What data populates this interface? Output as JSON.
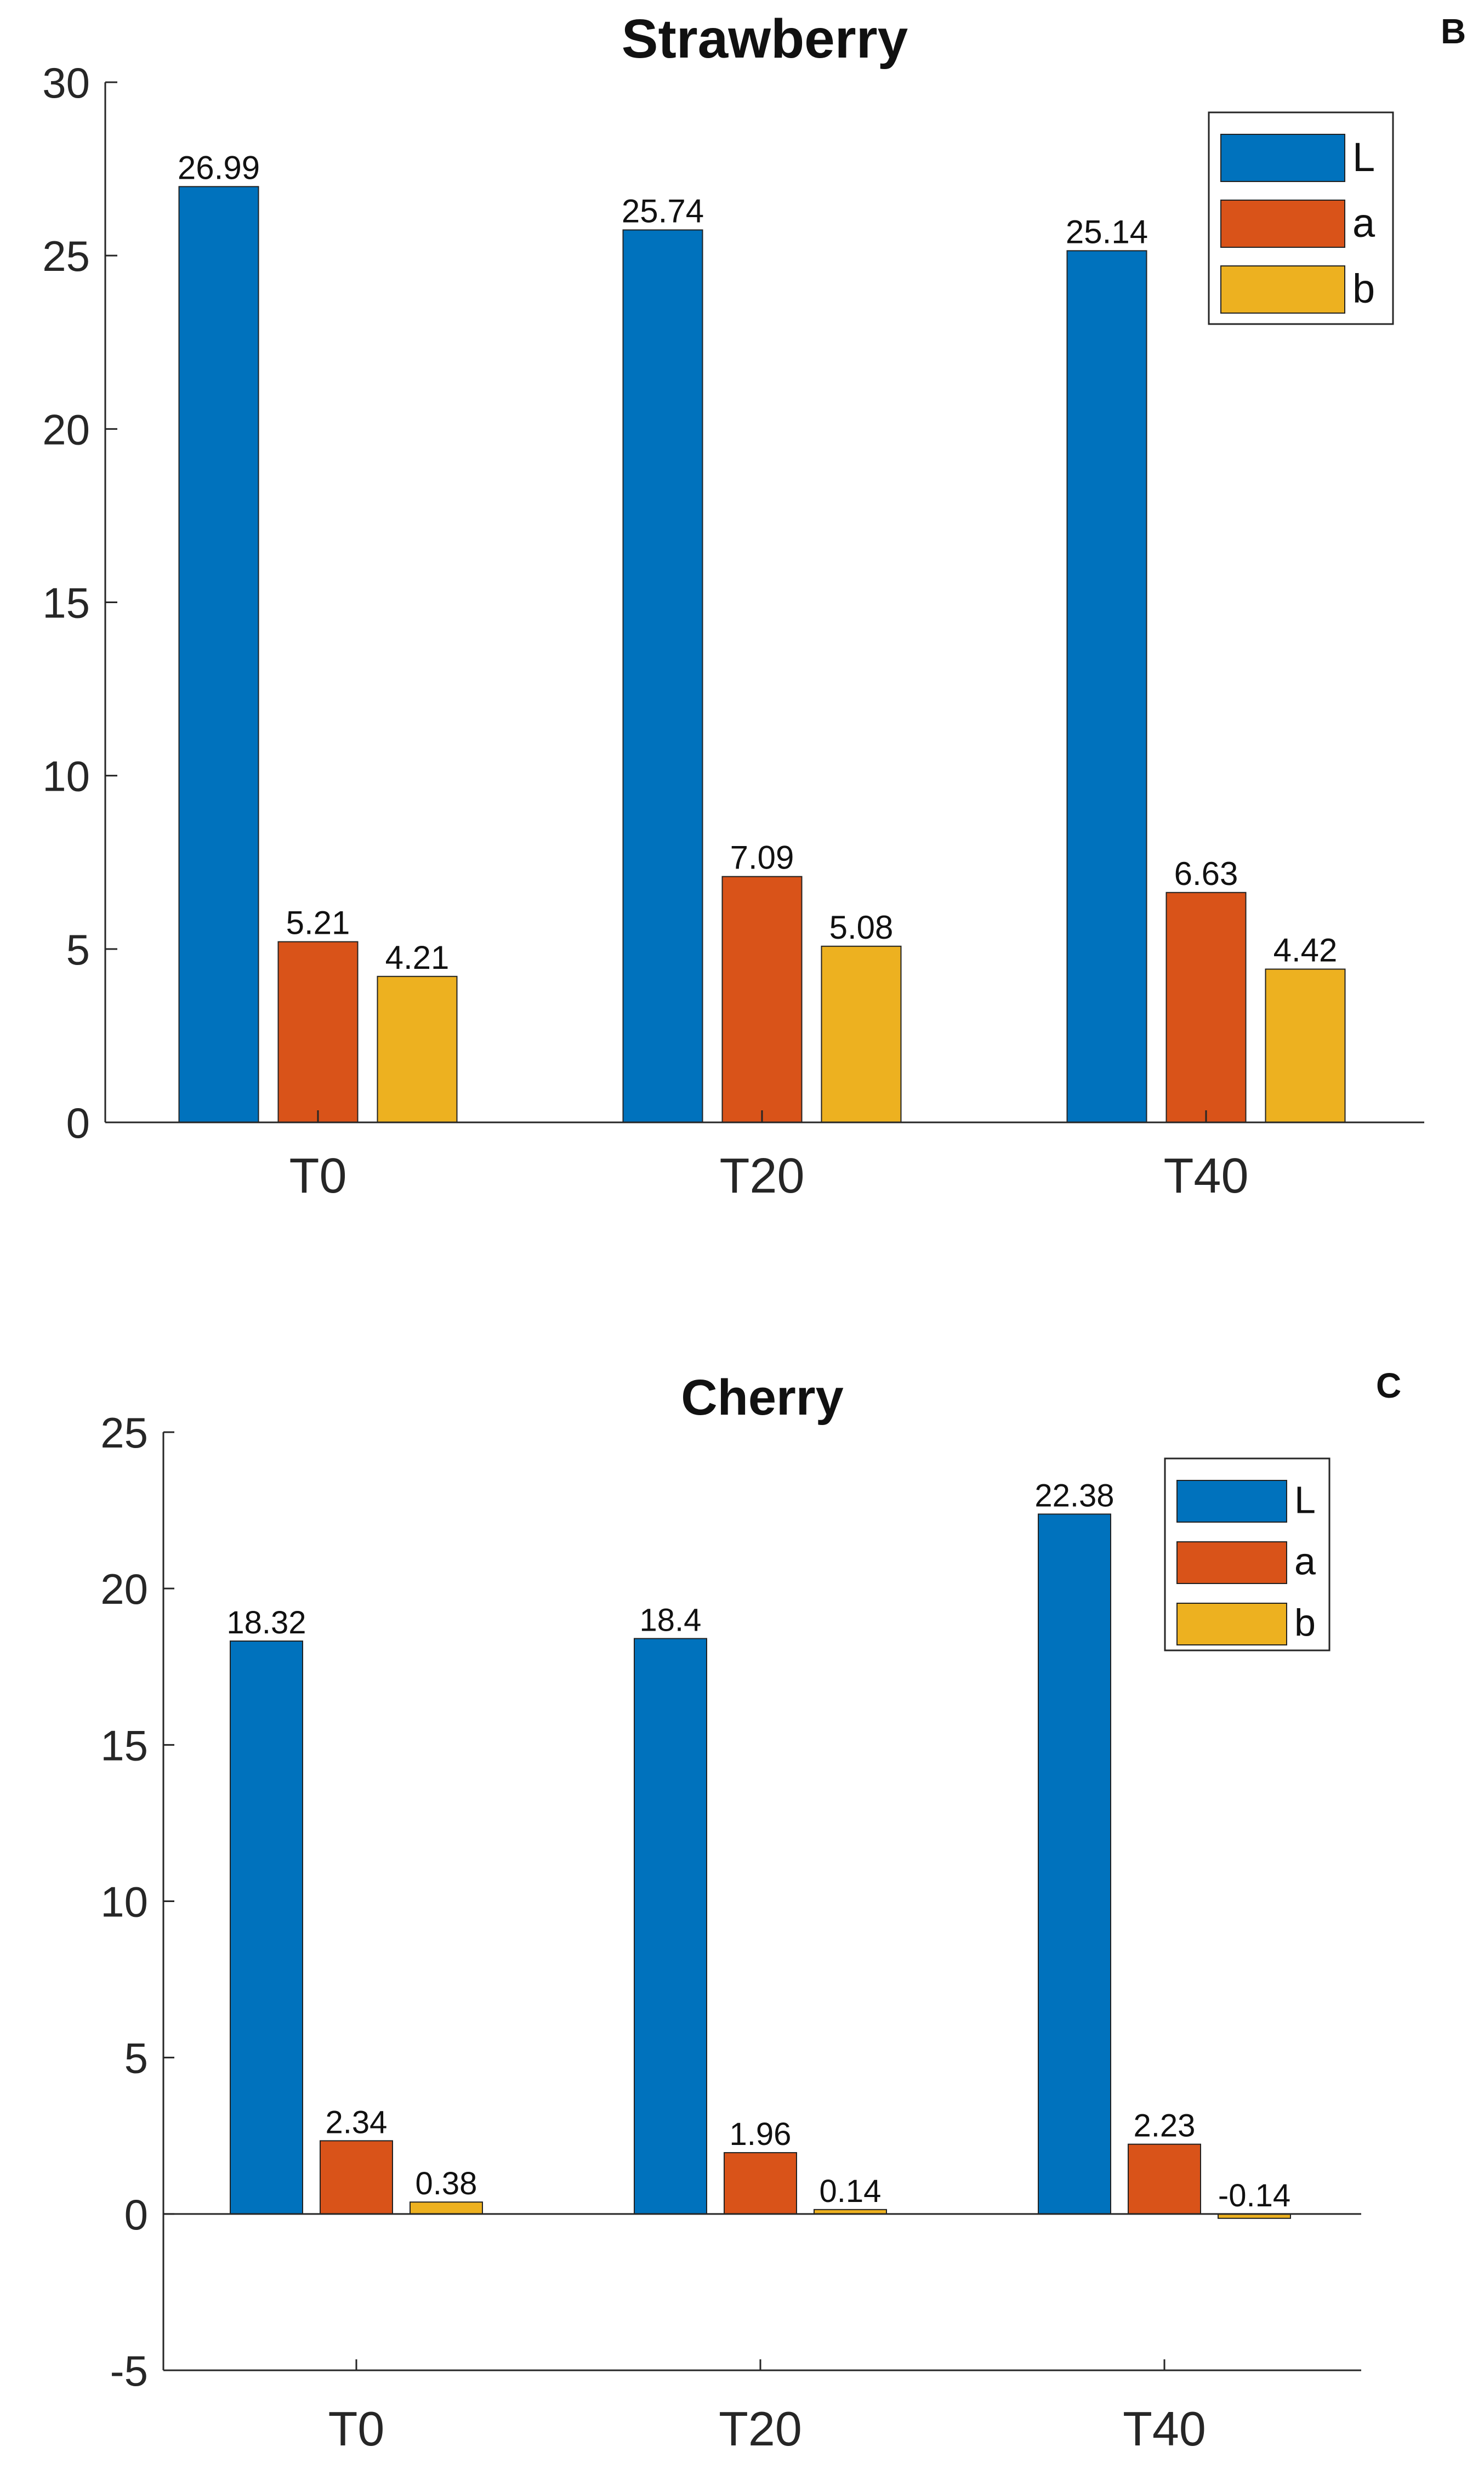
{
  "panels": {
    "strawberry_letter": "B",
    "cherry_letter": "C"
  },
  "colors": {
    "L": "#0072BD",
    "a": "#D95319",
    "b": "#EDB120",
    "axis": "#262626"
  },
  "chart_data": [
    {
      "type": "bar",
      "title": "Strawberry",
      "panel": "B",
      "xlabel": "",
      "ylabel": "",
      "categories": [
        "T0",
        "T20",
        "T40"
      ],
      "ylim": [
        0,
        30
      ],
      "yticks": [
        0,
        5,
        10,
        15,
        20,
        25,
        30
      ],
      "ytick_labels": [
        "0",
        "5",
        "10",
        "15",
        "20",
        "25",
        "30"
      ],
      "series": [
        {
          "name": "L",
          "values": [
            26.99,
            25.74,
            25.14
          ],
          "labels": [
            "26.99",
            "25.74",
            "25.14"
          ]
        },
        {
          "name": "a",
          "values": [
            5.21,
            7.09,
            6.63
          ],
          "labels": [
            "5.21",
            "7.09",
            "6.63"
          ]
        },
        {
          "name": "b",
          "values": [
            4.21,
            5.08,
            4.42
          ],
          "labels": [
            "4.21",
            "5.08",
            "4.42"
          ]
        }
      ],
      "legend": "top-right",
      "grid": false
    },
    {
      "type": "bar",
      "title": "Cherry",
      "panel": "C",
      "xlabel": "",
      "ylabel": "",
      "categories": [
        "T0",
        "T20",
        "T40"
      ],
      "ylim": [
        -5,
        25
      ],
      "yticks": [
        -5,
        0,
        5,
        10,
        15,
        20,
        25
      ],
      "ytick_labels": [
        "-5",
        "0",
        "5",
        "10",
        "15",
        "20",
        "25"
      ],
      "series": [
        {
          "name": "L",
          "values": [
            18.32,
            18.4,
            22.38
          ],
          "labels": [
            "18.32",
            "18.4",
            "22.38"
          ]
        },
        {
          "name": "a",
          "values": [
            2.34,
            1.96,
            2.23
          ],
          "labels": [
            "2.34",
            "1.96",
            "2.23"
          ]
        },
        {
          "name": "b",
          "values": [
            0.38,
            0.14,
            -0.14
          ],
          "labels": [
            "0.38",
            "0.14",
            "-0.14"
          ]
        }
      ],
      "legend": "top-right",
      "grid": false
    }
  ]
}
